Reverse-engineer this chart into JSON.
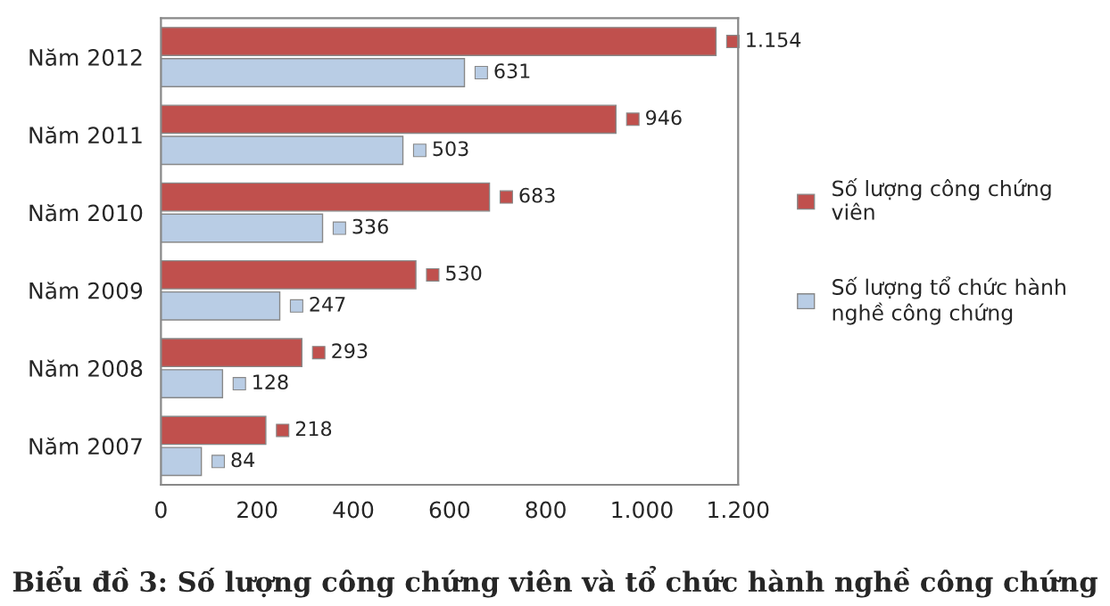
{
  "chart_data": {
    "type": "bar",
    "orientation": "horizontal",
    "title": "Biểu đồ 3: Số lượng công chứng viên và tổ chức hành nghề công chứng",
    "categories": [
      "Năm 2012",
      "Năm 2011",
      "Năm 2010",
      "Năm 2009",
      "Năm 2008",
      "Năm 2007"
    ],
    "series": [
      {
        "name": "Số lượng công chứng viên",
        "color": "#c0504d",
        "values": [
          1154,
          946,
          683,
          530,
          293,
          218
        ],
        "value_labels": [
          "1.154",
          "946",
          "683",
          "530",
          "293",
          "218"
        ]
      },
      {
        "name": "Số lượng tổ chức hành nghề công chứng",
        "color": "#b9cde5",
        "values": [
          631,
          503,
          336,
          247,
          128,
          84
        ],
        "value_labels": [
          "631",
          "503",
          "336",
          "247",
          "128",
          "84"
        ]
      }
    ],
    "xlim": [
      0,
      1200
    ],
    "xticks": [
      0,
      200,
      400,
      600,
      800,
      {
        "value": 1000,
        "label": "1.000"
      },
      {
        "value": 1200,
        "label": "1.200"
      }
    ],
    "grid": false,
    "legend": "right"
  }
}
